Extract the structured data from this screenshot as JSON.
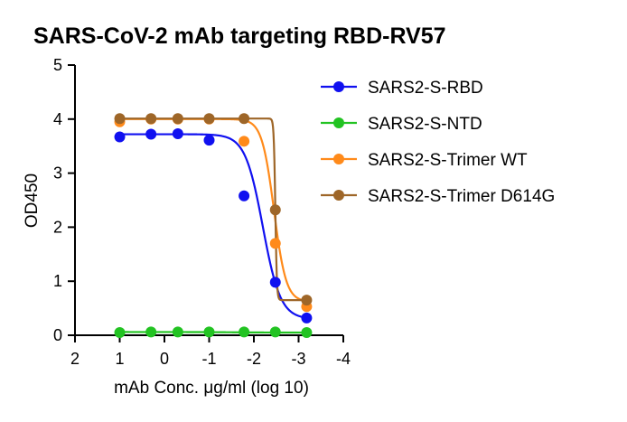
{
  "chart_data": {
    "type": "scatter",
    "title": "SARS-CoV-2 mAb targeting RBD-RV57",
    "xlabel": "mAb Conc. μg/ml (log 10)",
    "ylabel": "OD450",
    "xlim": [
      2,
      -4
    ],
    "ylim": [
      0,
      5
    ],
    "x_reversed": true,
    "x_ticks": [
      "2",
      "1",
      "0",
      "-1",
      "-2",
      "-3",
      "-4"
    ],
    "y_ticks": [
      "0",
      "1",
      "2",
      "3",
      "4",
      "5"
    ],
    "grid": false,
    "legend_position": "top-right",
    "fit": "four-parameter logistic curve per series",
    "x": [
      1.0,
      0.3,
      -0.3,
      -1.0,
      -1.78,
      -2.48,
      -3.18
    ],
    "series": [
      {
        "name": "SARS2-S-RBD",
        "color": "#1010f0",
        "values": [
          3.67,
          3.72,
          3.73,
          3.61,
          2.58,
          0.98,
          0.32
        ],
        "curve": {
          "bottom": 0.3,
          "top": 3.72,
          "logEC50": -2.2,
          "hill": 2.2
        }
      },
      {
        "name": "SARS2-S-NTD",
        "color": "#22c322",
        "values": [
          0.05,
          0.06,
          0.06,
          0.06,
          0.06,
          0.06,
          0.05
        ],
        "curve": {
          "bottom": 0.05,
          "top": 0.06,
          "logEC50": -1.5,
          "hill": 1.0
        }
      },
      {
        "name": "SARS2-S-Trimer WT",
        "color": "#ff8a1a",
        "values": [
          3.95,
          4.0,
          4.0,
          4.0,
          3.59,
          1.7,
          0.53
        ],
        "curve": {
          "bottom": 0.62,
          "top": 4.0,
          "logEC50": -2.45,
          "hill": 3.2
        }
      },
      {
        "name": "SARS2-S-Trimer D614G",
        "color": "#9e6628",
        "values": [
          4.01,
          4.01,
          4.01,
          4.01,
          4.01,
          2.32,
          0.65
        ],
        "curve": {
          "bottom": 0.65,
          "top": 4.01,
          "logEC50": -2.48,
          "hill": 25
        }
      }
    ]
  }
}
